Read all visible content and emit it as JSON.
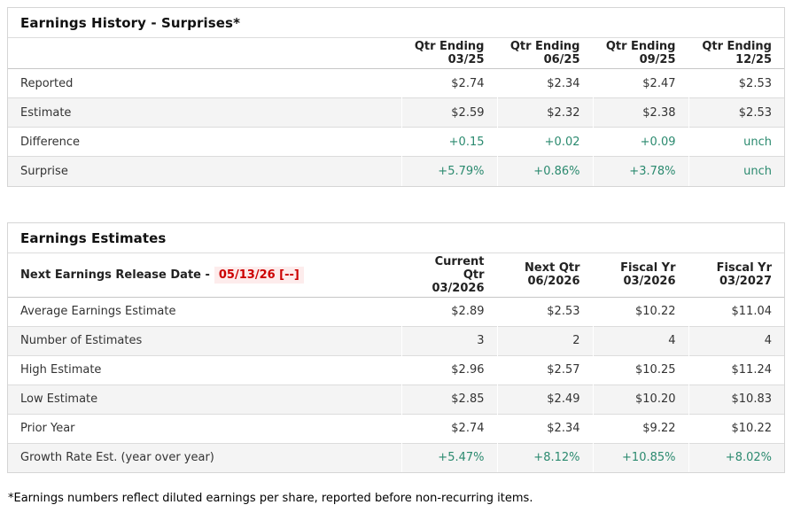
{
  "colors": {
    "positive_green": "#2b8a6f",
    "release_red": "#cc0000",
    "release_bg": "#fdecec",
    "stripe_gray": "#f4f4f4",
    "border_gray": "#d5d5d5"
  },
  "history": {
    "title": "Earnings History - Surprises*",
    "col_headers": [
      {
        "line1": "Qtr Ending",
        "line2": "03/25"
      },
      {
        "line1": "Qtr Ending",
        "line2": "06/25"
      },
      {
        "line1": "Qtr Ending",
        "line2": "09/25"
      },
      {
        "line1": "Qtr Ending",
        "line2": "12/25"
      }
    ],
    "rows": [
      {
        "label": "Reported",
        "values": [
          "$2.74",
          "$2.34",
          "$2.47",
          "$2.53"
        ]
      },
      {
        "label": "Estimate",
        "values": [
          "$2.59",
          "$2.32",
          "$2.38",
          "$2.53"
        ]
      },
      {
        "label": "Difference",
        "values": [
          "+0.15",
          "+0.02",
          "+0.09",
          "unch"
        ]
      },
      {
        "label": "Surprise",
        "values": [
          "+5.79%",
          "+0.86%",
          "+3.78%",
          "unch"
        ]
      }
    ]
  },
  "estimates": {
    "title": "Earnings Estimates",
    "release_label": "Next Earnings Release Date -",
    "release_date": "05/13/26 [--]",
    "col_headers": [
      {
        "line1": "Current Qtr",
        "line2": "03/2026"
      },
      {
        "line1": "Next Qtr",
        "line2": "06/2026"
      },
      {
        "line1": "Fiscal Yr",
        "line2": "03/2026"
      },
      {
        "line1": "Fiscal Yr",
        "line2": "03/2027"
      }
    ],
    "rows": [
      {
        "label": "Average Earnings Estimate",
        "values": [
          "$2.89",
          "$2.53",
          "$10.22",
          "$11.04"
        ]
      },
      {
        "label": "Number of Estimates",
        "values": [
          "3",
          "2",
          "4",
          "4"
        ]
      },
      {
        "label": "High Estimate",
        "values": [
          "$2.96",
          "$2.57",
          "$10.25",
          "$11.24"
        ]
      },
      {
        "label": "Low Estimate",
        "values": [
          "$2.85",
          "$2.49",
          "$10.20",
          "$10.83"
        ]
      },
      {
        "label": "Prior Year",
        "values": [
          "$2.74",
          "$2.34",
          "$9.22",
          "$10.22"
        ]
      },
      {
        "label": "Growth Rate Est. (year over year)",
        "values": [
          "+5.47%",
          "+8.12%",
          "+10.85%",
          "+8.02%"
        ]
      }
    ]
  },
  "footnote": "*Earnings numbers reflect diluted earnings per share, reported before non-recurring items."
}
